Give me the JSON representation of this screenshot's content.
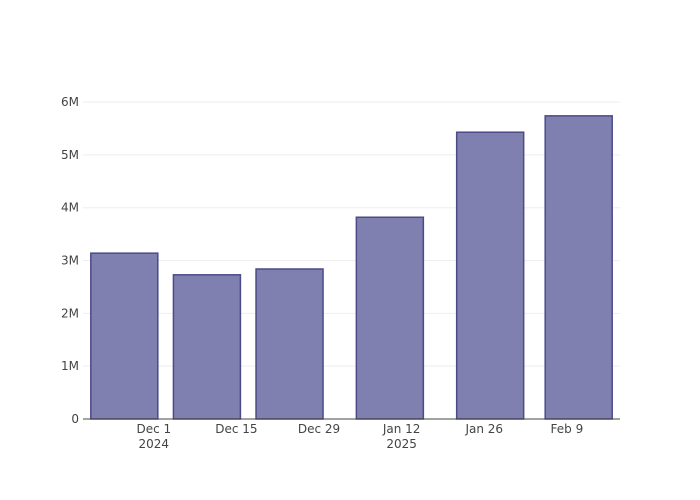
{
  "chart_data": {
    "type": "bar",
    "x": [
      "2024-11-26",
      "2024-12-10",
      "2024-12-24",
      "2025-01-10",
      "2025-01-27",
      "2025-02-11"
    ],
    "values": [
      3140000,
      2730000,
      2840000,
      3820000,
      5430000,
      5740000
    ],
    "color": "#7f7fb0",
    "edge_color": "#4b4b86",
    "xlim": [
      "2024-11-19",
      "2025-02-18"
    ],
    "xticks": [
      {
        "value": "2024-12-01",
        "label": "Dec 1\n2024"
      },
      {
        "value": "2024-12-15",
        "label": "Dec 15"
      },
      {
        "value": "2024-12-29",
        "label": "Dec 29"
      },
      {
        "value": "2025-01-12",
        "label": "Jan 12\n2025"
      },
      {
        "value": "2025-01-26",
        "label": "Jan 26"
      },
      {
        "value": "2025-02-09",
        "label": "Feb 9"
      }
    ],
    "ylim": [
      0,
      6040000
    ],
    "yticks": [
      0,
      {
        "value": 1000000,
        "label": "1M"
      },
      {
        "value": 2000000,
        "label": "2M"
      },
      {
        "value": 3000000,
        "label": "3M"
      },
      {
        "value": 4000000,
        "label": "4M"
      },
      {
        "value": 5000000,
        "label": "5M"
      },
      {
        "value": 6000000,
        "label": "6M"
      }
    ],
    "grid": true
  }
}
